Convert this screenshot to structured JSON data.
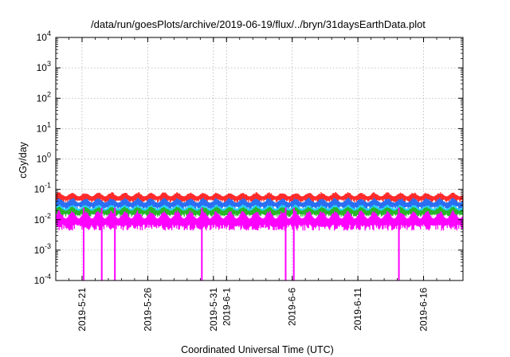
{
  "chart_data": {
    "type": "line",
    "title": "/data/run/goesPlots/archive/2019-06-19/flux/../bryn/31daysEarthData.plot",
    "xlabel": "Coordinated Universal Time (UTC)",
    "ylabel": "cGy/day",
    "y_scale": "log",
    "ylim": [
      0.0001,
      10000
    ],
    "xlim": [
      "2019-05-19",
      "2019-06-19"
    ],
    "x_ticks": [
      "2019-5-21",
      "2019-5-26",
      "2019-5-31",
      "2019-6-1",
      "2019-6-6",
      "2019-6-11",
      "2019-6-16"
    ],
    "y_ticks": [
      {
        "value": 0.0001,
        "base": "10",
        "exp": "-4"
      },
      {
        "value": 0.001,
        "base": "10",
        "exp": "-3"
      },
      {
        "value": 0.01,
        "base": "10",
        "exp": "-2"
      },
      {
        "value": 0.1,
        "base": "10",
        "exp": "-1"
      },
      {
        "value": 1,
        "base": "10",
        "exp": "0"
      },
      {
        "value": 10,
        "base": "10",
        "exp": "1"
      },
      {
        "value": 100,
        "base": "10",
        "exp": "2"
      },
      {
        "value": 1000,
        "base": "10",
        "exp": "3"
      },
      {
        "value": 10000,
        "base": "10",
        "exp": "4"
      }
    ],
    "grid": true,
    "legend": "none",
    "series": [
      {
        "color": "#ff2a2a",
        "low": 0.035,
        "high": 0.09
      },
      {
        "color": "#2a6ff2",
        "low": 0.02,
        "high": 0.06
      },
      {
        "color": "#24d4ff",
        "low": 0.014,
        "high": 0.035
      },
      {
        "color": "#2ab42a",
        "low": 0.012,
        "high": 0.03
      },
      {
        "color": "#ff00ff",
        "low": 0.004,
        "high": 0.025
      }
    ],
    "magenta_dropouts": [
      {
        "start": "2019-05-21",
        "end": "2019-05-21"
      },
      {
        "start": "2019-05-22",
        "end": "2019-05-23"
      },
      {
        "start": "2019-05-23",
        "end": "2019-05-24"
      },
      {
        "start": "2019-05-30",
        "end": "2019-05-30"
      },
      {
        "start": "2019-06-05",
        "end": "2019-06-06"
      },
      {
        "start": "2019-06-06",
        "end": "2019-06-06"
      },
      {
        "start": "2019-06-14",
        "end": "2019-06-14"
      }
    ]
  }
}
